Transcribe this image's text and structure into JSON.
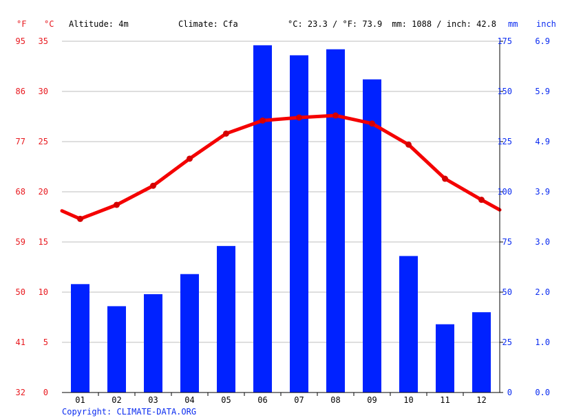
{
  "header": {
    "f_unit": "°F",
    "c_unit": "°C",
    "altitude": "Altitude: 4m",
    "climate": "Climate: Cfa",
    "avg_temp": "°C: 23.3 / °F: 73.9",
    "avg_precip": "mm: 1088 / inch: 42.8",
    "mm_unit": "mm",
    "inch_unit": "inch"
  },
  "footer": {
    "copyright": "Copyright: CLIMATE-DATA.ORG"
  },
  "colors": {
    "temperature": "#f40000",
    "precipitation": "#0022ff",
    "temp_axis_text": "#e8181e",
    "precip_axis_text": "#0a2bf0",
    "grid": "#bdbdbd"
  },
  "chart_data": {
    "type": "bar",
    "categories": [
      "01",
      "02",
      "03",
      "04",
      "05",
      "06",
      "07",
      "08",
      "09",
      "10",
      "11",
      "12"
    ],
    "series": [
      {
        "type": "bar",
        "axis": "right",
        "unit": "mm",
        "values": [
          54,
          43,
          49,
          59,
          73,
          173,
          168,
          171,
          156,
          68,
          34,
          40
        ]
      },
      {
        "type": "line",
        "axis": "left",
        "unit": "°C",
        "values": [
          17.3,
          18.7,
          20.6,
          23.3,
          25.8,
          27.1,
          27.4,
          27.6,
          26.8,
          24.7,
          21.3,
          19.2
        ],
        "start_value": 18.1,
        "end_value": 18.2
      }
    ],
    "left_axis_c": {
      "ticks": [
        "0",
        "5",
        "10",
        "15",
        "20",
        "25",
        "30",
        "35"
      ],
      "ylim": [
        0,
        35
      ]
    },
    "left_axis_f": {
      "ticks": [
        "32",
        "41",
        "50",
        "59",
        "68",
        "77",
        "86",
        "95"
      ]
    },
    "right_axis_mm": {
      "ticks": [
        "0",
        "25",
        "50",
        "75",
        "100",
        "125",
        "150",
        "175"
      ],
      "ylim": [
        0,
        175
      ]
    },
    "right_axis_inch": {
      "ticks": [
        "0.0",
        "1.0",
        "2.0",
        "3.0",
        "3.9",
        "4.9",
        "5.9",
        "6.9"
      ]
    },
    "grid": true
  }
}
